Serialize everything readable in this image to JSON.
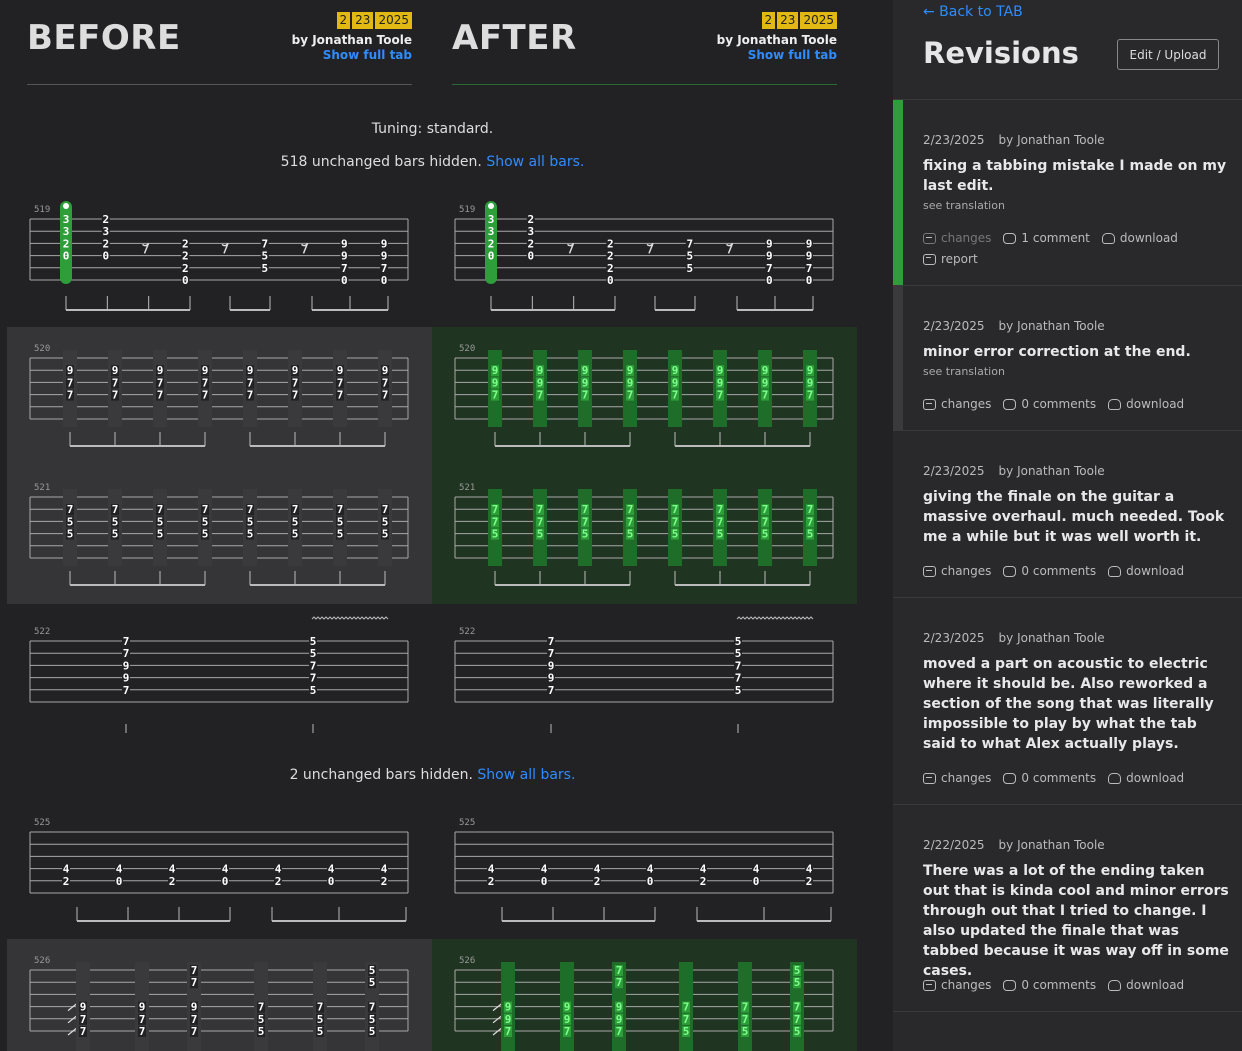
{
  "before": {
    "heading": "BEFORE",
    "date": [
      "2",
      "23",
      "2025"
    ],
    "author": "by Jonathan Toole",
    "full_tab": "Show full tab"
  },
  "after": {
    "heading": "AFTER",
    "date": [
      "2",
      "23",
      "2025"
    ],
    "author": "by Jonathan Toole",
    "full_tab": "Show full tab"
  },
  "tuning": "Tuning: standard.",
  "hidden1": {
    "text": "518 unchanged bars hidden.",
    "link": "Show all bars."
  },
  "hidden2": {
    "text": "2 unchanged bars hidden.",
    "link": "Show all bars."
  },
  "bars": [
    {
      "num": "519",
      "changed": false,
      "columns": [
        {
          "n": {
            "0": "3",
            "1": "3",
            "2": "2",
            "3": "0"
          },
          "hl": true
        },
        {
          "n": {
            "0": "2",
            "1": "3",
            "2": "2",
            "3": "0"
          }
        },
        {
          "rest": true
        },
        {
          "n": {
            "2": "2",
            "3": "2",
            "4": "2",
            "5": "0"
          }
        },
        {
          "rest": true
        },
        {
          "n": {
            "2": "7",
            "3": "5",
            "4": "5"
          }
        },
        {
          "rest": true
        },
        {
          "n": {
            "2": "9",
            "3": "9",
            "4": "7",
            "5": "0"
          }
        },
        {
          "n": {
            "2": "9",
            "3": "9",
            "4": "7",
            "5": "0"
          }
        }
      ]
    },
    {
      "num": "520",
      "changed": true,
      "before": [
        "9",
        "7",
        "7"
      ],
      "after": [
        "9",
        "9",
        "7"
      ],
      "strings": [
        1,
        2,
        3
      ]
    },
    {
      "num": "521",
      "changed": true,
      "before": [
        "7",
        "5",
        "5"
      ],
      "after": [
        "7",
        "7",
        "5"
      ],
      "strings": [
        1,
        2,
        3
      ]
    },
    {
      "num": "522",
      "changed": false,
      "columns": [
        {
          "n": {
            "0": "7",
            "1": "7",
            "2": "9",
            "3": "9",
            "4": "7"
          }
        },
        {
          "n": {
            "0": "5",
            "1": "5",
            "2": "7",
            "3": "7",
            "4": "5"
          }
        }
      ]
    },
    {
      "num": "525",
      "changed": false,
      "columns": [
        {
          "n": {
            "3": "4",
            "4": "2"
          }
        },
        {
          "n": {
            "3": "4",
            "4": "0"
          }
        },
        {
          "n": {
            "3": "4",
            "4": "2"
          }
        },
        {
          "n": {
            "3": "4",
            "4": "0"
          }
        },
        {
          "n": {
            "3": "4",
            "4": "2"
          }
        },
        {
          "n": {
            "3": "4",
            "4": "0"
          }
        },
        {
          "n": {
            "3": "4",
            "4": "2"
          }
        }
      ]
    },
    {
      "num": "526",
      "changed": true
    }
  ],
  "revisions_panel": {
    "back": "← Back to TAB",
    "title": "Revisions",
    "edit_button": "Edit / Upload",
    "items": [
      {
        "date": "2/23/2025",
        "author": "by Jonathan Toole",
        "desc": "fixing a tabbing mistake I made on my last edit.",
        "translation": "see translation",
        "changes": "changes",
        "comments": "1 comment",
        "download": "download",
        "report": "report",
        "accent": "#2e9e3a"
      },
      {
        "date": "2/23/2025",
        "author": "by Jonathan Toole",
        "desc": "minor error correction at the end.",
        "translation": "see translation",
        "changes": "changes",
        "comments": "0 comments",
        "download": "download",
        "accent": "#3a3a3d"
      },
      {
        "date": "2/23/2025",
        "author": "by Jonathan Toole",
        "desc": "giving the finale on the guitar a massive overhaul. much needed. Took me a while but it was well worth it.",
        "changes": "changes",
        "comments": "0 comments",
        "download": "download"
      },
      {
        "date": "2/23/2025",
        "author": "by Jonathan Toole",
        "desc": "moved a part on acoustic to electric where it should be. Also reworked a section of the song that was literally impossible to play by what the tab said to what Alex actually plays.",
        "changes": "changes",
        "comments": "0 comments",
        "download": "download"
      },
      {
        "date": "2/22/2025",
        "author": "by Jonathan Toole",
        "desc": "There was a lot of the ending taken out that is kinda cool and minor errors through out that I tried to change. I also updated the finale that was tabbed because it was way off in some cases.",
        "changes": "changes",
        "comments": "0 comments",
        "download": "download"
      }
    ]
  },
  "colors": {
    "accent_green": "#2e9e3a",
    "link_blue": "#2f8cff",
    "date_badge": "#e2b912",
    "changed_bg_before": "#353537",
    "changed_bg_after": "#1f3522"
  }
}
